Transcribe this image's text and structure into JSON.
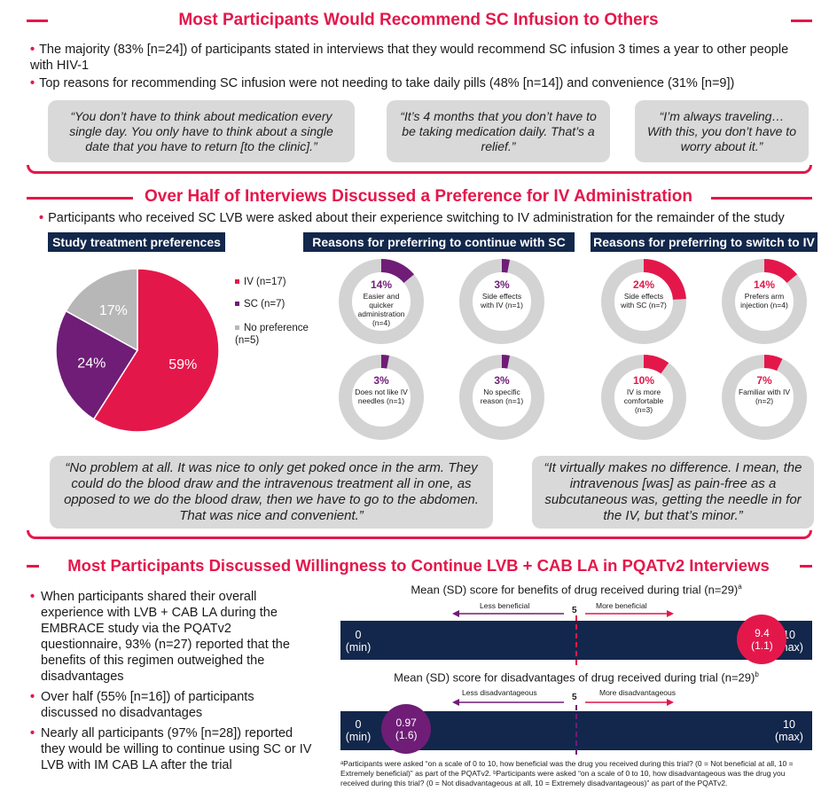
{
  "section1": {
    "title": "Most Participants Would Recommend SC Infusion to Others",
    "bullet1": "The majority (83% [n=24]) of participants stated in interviews that they would recommend SC infusion 3 times a year to other people with HIV-1",
    "bullet2": "Top reasons for recommending SC infusion were not needing to take daily pills (48% [n=14]) and convenience (31% [n=9])",
    "quote1": "“You don’t have to think about medication every single day. You only have to think about a single date that you have to return [to the clinic].”",
    "quote2": "“It’s 4 months that you don’t have to be taking medication daily. That’s a relief.”",
    "quote3": "“I’m always traveling… With this, you don’t have to worry about it.”"
  },
  "section2": {
    "title": "Over Half of Interviews Discussed a Preference for IV Administration",
    "bullet1": "Participants who received SC LVB were asked about their experience switching to IV administration for the remainder of the study",
    "head_pref": "Study treatment preferences",
    "head_sc": "Reasons for preferring to continue with SC",
    "head_iv": "Reasons for preferring to switch to IV",
    "quote_left": "“No problem at all. It was nice to only get poked once in the arm. They could do the blood draw and the intravenous treatment all in one, as opposed to we do the blood draw, then we have to go to the abdomen. That was nice and convenient.”",
    "quote_right": "“It virtually makes no difference. I mean, the intravenous [was] as pain-free as a subcutaneous was, getting the needle in for the IV, but that’s minor.”"
  },
  "chart_data": {
    "type": "pie",
    "categories": [
      "IV (n=17)",
      "SC (n=7)",
      "No preference (n=5)"
    ],
    "values": [
      59,
      24,
      17
    ],
    "slice_labels": [
      "59%",
      "24%",
      "17%"
    ],
    "colors": [
      "#e4174b",
      "#6f1d77",
      "#b7b7b7"
    ]
  },
  "donuts_sc": [
    {
      "pct": "14%",
      "value": 14,
      "label": "Easier and quicker administration (n=4)",
      "color": "#6f1d77"
    },
    {
      "pct": "3%",
      "value": 3,
      "label": "Side effects with IV (n=1)",
      "color": "#6f1d77"
    },
    {
      "pct": "3%",
      "value": 3,
      "label": "Does not like IV needles (n=1)",
      "color": "#6f1d77"
    },
    {
      "pct": "3%",
      "value": 3,
      "label": "No specific reason (n=1)",
      "color": "#6f1d77"
    }
  ],
  "donuts_iv": [
    {
      "pct": "24%",
      "value": 24,
      "label": "Side effects with SC (n=7)",
      "color": "#e4174b"
    },
    {
      "pct": "14%",
      "value": 14,
      "label": "Prefers arm injection (n=4)",
      "color": "#e4174b"
    },
    {
      "pct": "10%",
      "value": 10,
      "label": "IV is more comfortable (n=3)",
      "color": "#e4174b"
    },
    {
      "pct": "7%",
      "value": 7,
      "label": "Familiar with IV (n=2)",
      "color": "#e4174b"
    }
  ],
  "section3": {
    "title": "Most Participants Discussed Willingness to Continue LVB + CAB LA in PQATv2 Interviews",
    "bullet1": "When participants shared their overall experience with LVB + CAB LA during the EMBRACE study via the PQATv2 questionnaire, 93% (n=27) reported that the benefits of this regimen outweighed the disadvantages",
    "bullet2": "Over half (55% [n=16]) of participants discussed no disadvantages",
    "bullet3": "Nearly all participants (97% [n=28]) reported they would be willing to continue using SC or IV LVB with IM CAB LA after the trial",
    "scale1": {
      "caption": "Mean (SD) score for benefits of drug received during trial (n=29)",
      "sup": "a",
      "left_arrow": "Less beneficial",
      "right_arrow": "More beneficial",
      "midpoint": "5",
      "min_val": "0",
      "min_lbl": "(min)",
      "max_val": "10",
      "max_lbl": "(max)",
      "score": 9.4,
      "score_txt": "9.4",
      "sd_txt": "(1.1)"
    },
    "scale2": {
      "caption": "Mean (SD) score for disadvantages of drug received during trial (n=29)",
      "sup": "b",
      "left_arrow": "Less disadvantageous",
      "right_arrow": "More disadvantageous",
      "midpoint": "5",
      "min_val": "0",
      "min_lbl": "(min)",
      "max_val": "10",
      "max_lbl": "(max)",
      "score": 0.97,
      "score_txt": "0.97",
      "sd_txt": "(1.6)"
    },
    "footnote": "ᵃParticipants were asked “on a scale of 0 to 10, how beneficial was the drug you received during this trial? (0 = Not beneficial at all, 10 = Extremely beneficial)” as part of the PQATv2. ᵇParticipants were asked “on a scale of 0 to 10, how disadvantageous was the drug you received during this trial? (0 = Not disadvantageous at all, 10 = Extremely disadvantageous)” as part of the PQATv2."
  }
}
